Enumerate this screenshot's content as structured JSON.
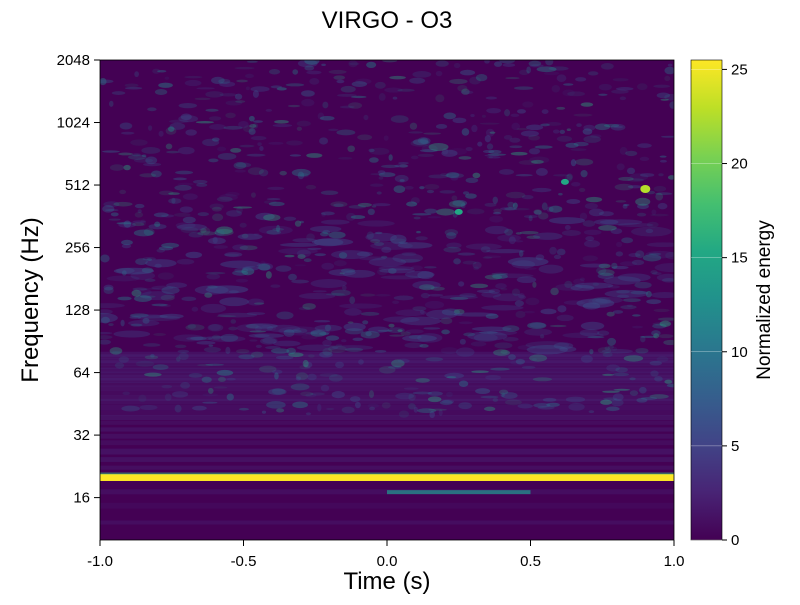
{
  "chart_data": {
    "type": "heatmap",
    "title": "VIRGO - O3",
    "xlabel": "Time (s)",
    "ylabel": "Frequency (Hz)",
    "xlim": [
      -1.0,
      1.0
    ],
    "ylim": [
      10,
      2048
    ],
    "yscale": "log2",
    "xticks": [
      -1.0,
      -0.5,
      0.0,
      0.5,
      1.0
    ],
    "xtick_labels": [
      "-1.0",
      "-0.5",
      "0.0",
      "0.5",
      "1.0"
    ],
    "yticks": [
      16,
      32,
      64,
      128,
      256,
      512,
      1024,
      2048
    ],
    "ytick_labels": [
      "16",
      "32",
      "64",
      "128",
      "256",
      "512",
      "1024",
      "2048"
    ],
    "colorbar": {
      "label": "Normalized energy",
      "colormap": "viridis",
      "range": [
        0,
        25.5
      ],
      "ticks": [
        0,
        5,
        10,
        15,
        20,
        25
      ],
      "tick_labels": [
        "0",
        "5",
        "10",
        "15",
        "20",
        "25"
      ]
    },
    "features": [
      {
        "type": "line",
        "frequency_hz": 20,
        "time_range": [
          -1.0,
          1.0
        ],
        "energy": 25
      },
      {
        "type": "band",
        "frequency_hz": 17,
        "time_range": [
          0.0,
          0.5
        ],
        "energy": 12
      },
      {
        "type": "blob",
        "time_s": 0.9,
        "frequency_hz": 490,
        "energy": 19
      },
      {
        "type": "blob",
        "time_s": 0.25,
        "frequency_hz": 380,
        "energy": 12
      },
      {
        "type": "blob",
        "time_s": 0.62,
        "frequency_hz": 530,
        "energy": 11
      }
    ],
    "grid": false
  }
}
